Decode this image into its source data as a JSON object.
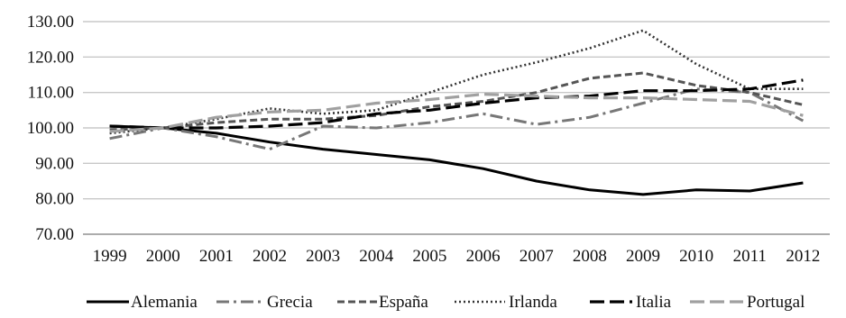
{
  "chart_data": {
    "type": "line",
    "title": "",
    "xlabel": "",
    "ylabel": "",
    "categories": [
      "1999",
      "2000",
      "2001",
      "2002",
      "2003",
      "2004",
      "2005",
      "2006",
      "2007",
      "2008",
      "2009",
      "2010",
      "2011",
      "2012"
    ],
    "ylim": [
      70,
      130
    ],
    "yticks": [
      "70.00",
      "80.00",
      "90.00",
      "100.00",
      "110.00",
      "120.00",
      "130.00"
    ],
    "grid": "horizontal",
    "legend_position": "bottom",
    "series": [
      {
        "name": "Alemania",
        "style": "solid",
        "color": "#000000",
        "values": [
          100.5,
          100.0,
          98.5,
          96.0,
          94.0,
          92.5,
          91.0,
          88.5,
          85.0,
          82.5,
          81.2,
          82.5,
          82.2,
          84.5
        ]
      },
      {
        "name": "Grecia",
        "style": "dashdot",
        "color": "#777777",
        "values": [
          97.0,
          100.0,
          97.5,
          94.0,
          100.5,
          100.0,
          101.5,
          104.0,
          101.0,
          103.0,
          107.0,
          111.0,
          110.0,
          102.0
        ]
      },
      {
        "name": "España",
        "style": "dashed",
        "color": "#555555",
        "values": [
          99.5,
          100.0,
          101.5,
          102.5,
          102.5,
          103.5,
          106.0,
          107.5,
          110.0,
          114.0,
          115.5,
          112.0,
          110.0,
          106.5
        ]
      },
      {
        "name": "Irlanda",
        "style": "dotted",
        "color": "#333333",
        "values": [
          98.5,
          100.0,
          102.5,
          105.5,
          104.0,
          105.0,
          110.0,
          115.0,
          118.5,
          122.5,
          127.5,
          118.0,
          111.0,
          111.0
        ]
      },
      {
        "name": "Italia",
        "style": "longdash",
        "color": "#000000",
        "values": [
          100.5,
          100.0,
          100.0,
          100.5,
          101.5,
          104.0,
          105.0,
          107.0,
          108.5,
          109.0,
          110.5,
          110.5,
          111.0,
          113.5
        ]
      },
      {
        "name": "Portugal",
        "style": "longdash",
        "color": "#a0a0a0",
        "values": [
          99.0,
          100.0,
          103.0,
          104.5,
          105.0,
          107.0,
          108.0,
          109.5,
          109.0,
          108.5,
          108.5,
          108.0,
          107.5,
          103.5
        ]
      }
    ]
  }
}
